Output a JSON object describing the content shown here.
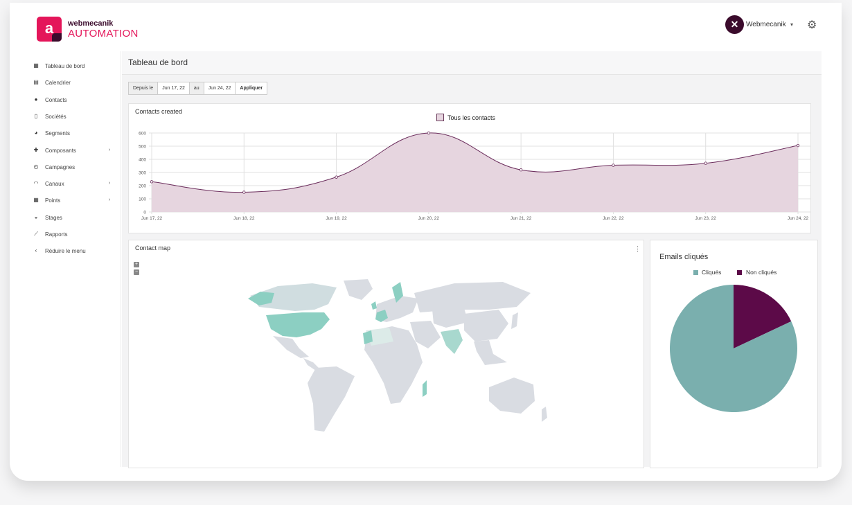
{
  "brand": {
    "top": "webmecanik",
    "bottom": "AUTOMATION",
    "logo_letter": "a"
  },
  "user": {
    "initials": "✕",
    "name": "Webmecanik",
    "caret": "▾",
    "settings_icon": "gear-icon"
  },
  "sidebar": {
    "items": [
      {
        "label": "Tableau de bord",
        "icon": "dashboard-icon",
        "glyph": "▦",
        "has_arrow": false
      },
      {
        "label": "Calendrier",
        "icon": "calendar-icon",
        "glyph": "▤",
        "has_arrow": false
      },
      {
        "label": "Contacts",
        "icon": "user-icon",
        "glyph": "●",
        "has_arrow": false
      },
      {
        "label": "Sociétés",
        "icon": "building-icon",
        "glyph": "▯",
        "has_arrow": false
      },
      {
        "label": "Segments",
        "icon": "pie-icon",
        "glyph": "◕",
        "has_arrow": false
      },
      {
        "label": "Composants",
        "icon": "puzzle-icon",
        "glyph": "✚",
        "has_arrow": true
      },
      {
        "label": "Campagnes",
        "icon": "clock-icon",
        "glyph": "◴",
        "has_arrow": false
      },
      {
        "label": "Canaux",
        "icon": "rss-icon",
        "glyph": "◠",
        "has_arrow": true
      },
      {
        "label": "Points",
        "icon": "calculator-icon",
        "glyph": "▦",
        "has_arrow": true
      },
      {
        "label": "Stages",
        "icon": "tachometer-icon",
        "glyph": "◒",
        "has_arrow": false
      },
      {
        "label": "Rapports",
        "icon": "chart-line-icon",
        "glyph": "⟋",
        "has_arrow": false
      },
      {
        "label": "Réduire le menu",
        "icon": "chevron-left-icon",
        "glyph": "‹",
        "has_arrow": false
      }
    ],
    "arrow_glyph": "›"
  },
  "page": {
    "title": "Tableau de bord"
  },
  "datefilter": {
    "from_label": "Depuis le",
    "from_value": "Jun 17, 22",
    "to_label": "au",
    "to_value": "Jun 24, 22",
    "apply_label": "Appliquer"
  },
  "contacts_chart": {
    "panel_title": "Contacts created",
    "chart_data": {
      "type": "area",
      "categories": [
        "Jun 17, 22",
        "Jun 18, 22",
        "Jun 19, 22",
        "Jun 20, 22",
        "Jun 21, 22",
        "Jun 22, 22",
        "Jun 23, 22",
        "Jun 24, 22"
      ],
      "series": [
        {
          "name": "Tous les contacts",
          "values": [
            230,
            150,
            265,
            600,
            320,
            355,
            370,
            505
          ]
        }
      ],
      "ylim": [
        0,
        600
      ],
      "yticks": [
        0,
        100,
        200,
        300,
        400,
        500,
        600
      ],
      "grid": true,
      "legend": "top-center",
      "line_color": "#6b2d5c",
      "fill_color": "#e6d5df"
    }
  },
  "map": {
    "panel_title": "Contact map",
    "zoom_in": "+",
    "zoom_out": "−",
    "menu_glyph": "⋮",
    "land_color": "#d9dce2",
    "highlight_color": "#8ccfc2"
  },
  "pie": {
    "title": "Emails cliqués",
    "chart_data": {
      "type": "pie",
      "labels": [
        "Cliqués",
        "Non cliqués"
      ],
      "values": [
        82,
        18
      ],
      "colors": [
        "#7aafae",
        "#5c0a48"
      ],
      "legend": "top-center"
    }
  }
}
